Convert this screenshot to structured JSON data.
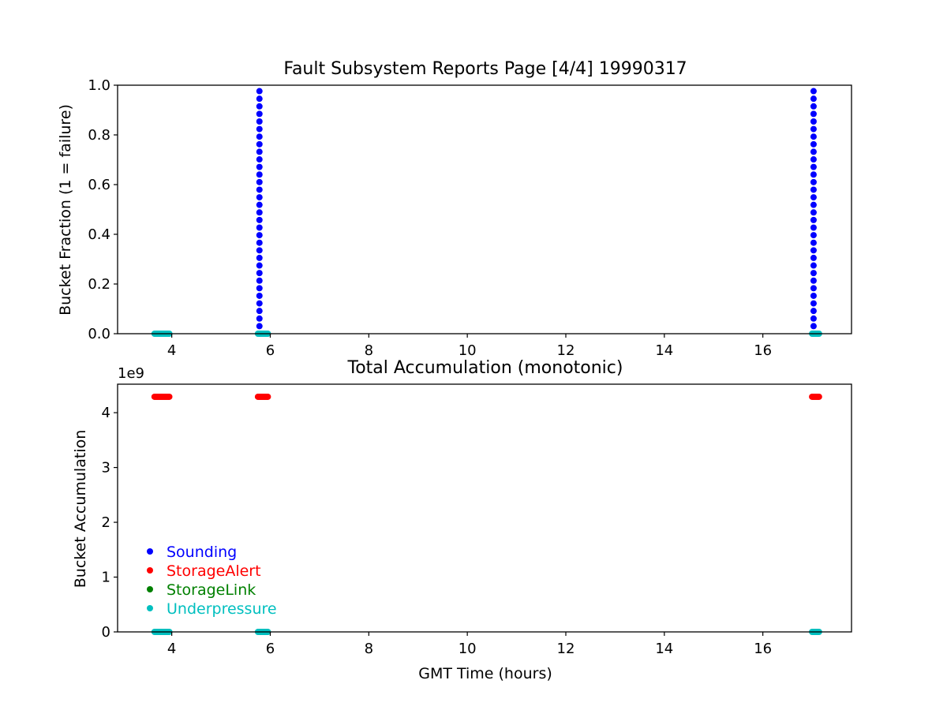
{
  "chart_data": [
    {
      "type": "scatter",
      "title": "Fault Subsystem Reports Page [4/4] 19990317",
      "xlabel": "",
      "ylabel": "Bucket Fraction (1 = failure)",
      "xlim": [
        2.9,
        17.8
      ],
      "ylim": [
        0.0,
        1.0
      ],
      "xticks": [
        "4",
        "6",
        "8",
        "10",
        "12",
        "14",
        "16"
      ],
      "xtick_values": [
        4,
        6,
        8,
        10,
        12,
        14,
        16
      ],
      "yticks": [
        "0.0",
        "0.2",
        "0.4",
        "0.6",
        "0.8",
        "1.0"
      ],
      "ytick_values": [
        0.0,
        0.2,
        0.4,
        0.6,
        0.8,
        1.0
      ],
      "grid": false,
      "series": [
        {
          "name": "Sounding",
          "color": "#0000ff",
          "points": [
            {
              "x": 5.78,
              "y_range": [
                0.0,
                0.97
              ],
              "y_step": 0.0305
            },
            {
              "x": 17.03,
              "y_range": [
                0.0,
                0.97
              ],
              "y_step": 0.0305
            }
          ]
        },
        {
          "name": "Underpressure",
          "color": "#00bfbf",
          "points": [
            {
              "x_range": [
                3.65,
                3.95
              ],
              "y": 0.0
            },
            {
              "x_range": [
                5.75,
                5.95
              ],
              "y": 0.0
            },
            {
              "x_range": [
                17.0,
                17.15
              ],
              "y": 0.0
            }
          ]
        }
      ]
    },
    {
      "type": "scatter",
      "title": "Total Accumulation (monotonic)",
      "xlabel": "GMT Time (hours)",
      "ylabel": "Bucket Accumulation",
      "offset_text": "1e9",
      "xlim": [
        2.9,
        17.8
      ],
      "ylim": [
        0.0,
        4.52
      ],
      "xticks": [
        "4",
        "6",
        "8",
        "10",
        "12",
        "14",
        "16"
      ],
      "xtick_values": [
        4,
        6,
        8,
        10,
        12,
        14,
        16
      ],
      "yticks": [
        "0",
        "1",
        "2",
        "3",
        "4"
      ],
      "ytick_values": [
        0,
        1,
        2,
        3,
        4
      ],
      "grid": false,
      "legend_position": "lower-left",
      "series": [
        {
          "name": "Sounding",
          "color": "#0000ff",
          "points": []
        },
        {
          "name": "StorageAlert",
          "color": "#ff0000",
          "points": [
            {
              "x_range": [
                3.65,
                3.95
              ],
              "y": 4.29
            },
            {
              "x_range": [
                5.75,
                5.95
              ],
              "y": 4.29
            },
            {
              "x_range": [
                17.0,
                17.15
              ],
              "y": 4.29
            }
          ]
        },
        {
          "name": "StorageLink",
          "color": "#008000",
          "points": []
        },
        {
          "name": "Underpressure",
          "color": "#00bfbf",
          "points": [
            {
              "x_range": [
                3.65,
                3.95
              ],
              "y": 0.0
            },
            {
              "x_range": [
                5.75,
                5.95
              ],
              "y": 0.0
            },
            {
              "x_range": [
                17.0,
                17.15
              ],
              "y": 0.0
            }
          ]
        }
      ]
    }
  ]
}
